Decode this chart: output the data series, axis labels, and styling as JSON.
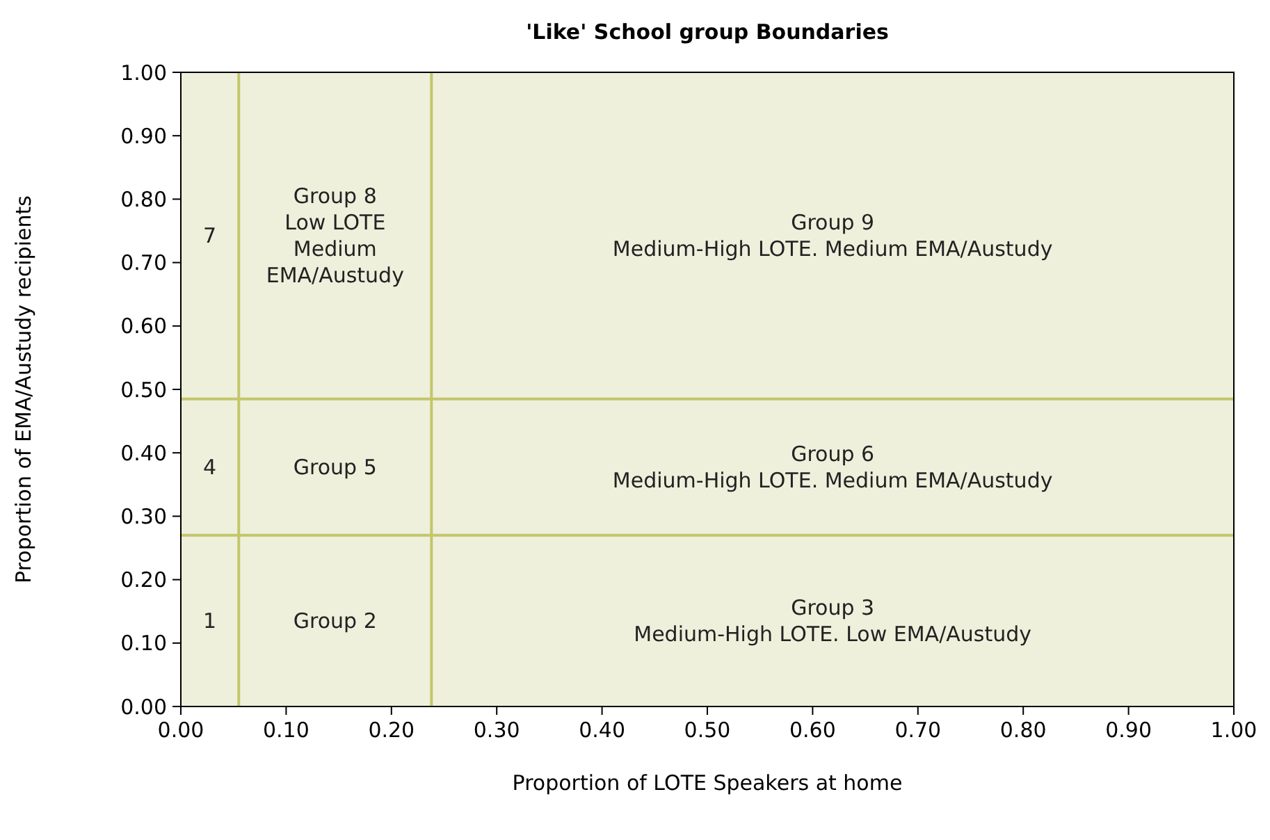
{
  "chart_data": {
    "type": "line",
    "title": "'Like' School group Boundaries",
    "xlabel": "Proportion of LOTE Speakers at home",
    "ylabel": "Proportion of EMA/Austudy recipients",
    "xlim": [
      0,
      1
    ],
    "ylim": [
      0,
      1
    ],
    "xticks": [
      {
        "value": 0,
        "label": "0.00"
      },
      {
        "value": 0.1,
        "label": "0.10"
      },
      {
        "value": 0.2,
        "label": "0.20"
      },
      {
        "value": 0.3,
        "label": "0.30"
      },
      {
        "value": 0.4,
        "label": "0.40"
      },
      {
        "value": 0.5,
        "label": "0.50"
      },
      {
        "value": 0.6,
        "label": "0.60"
      },
      {
        "value": 0.7,
        "label": "0.70"
      },
      {
        "value": 0.8,
        "label": "0.80"
      },
      {
        "value": 0.9,
        "label": "0.90"
      },
      {
        "value": 1,
        "label": "1.00"
      }
    ],
    "yticks": [
      {
        "value": 0,
        "label": "0.00"
      },
      {
        "value": 0.1,
        "label": "0.10"
      },
      {
        "value": 0.2,
        "label": "0.20"
      },
      {
        "value": 0.3,
        "label": "0.30"
      },
      {
        "value": 0.4,
        "label": "0.40"
      },
      {
        "value": 0.5,
        "label": "0.50"
      },
      {
        "value": 0.6,
        "label": "0.60"
      },
      {
        "value": 0.7,
        "label": "0.70"
      },
      {
        "value": 0.8,
        "label": "0.80"
      },
      {
        "value": 0.9,
        "label": "0.90"
      },
      {
        "value": 1,
        "label": "1.00"
      }
    ],
    "series": [
      {
        "color": "#c3c66a",
        "x": [
          0.055,
          0.055
        ],
        "values": [
          0,
          1
        ]
      },
      {
        "color": "#c3c66a",
        "x": [
          0.238,
          0.238
        ],
        "values": [
          0,
          1
        ]
      },
      {
        "color": "#c3c66a",
        "x": [
          0,
          1
        ],
        "values": [
          0.485,
          0.485
        ]
      },
      {
        "color": "#c3c66a",
        "x": [
          0,
          1
        ],
        "values": [
          0.27,
          0.27
        ]
      }
    ],
    "annotations": [
      "7",
      "Group 8\nLow LOTE\nMedium\nEMA/Austudy",
      "Group 9\nMedium-High LOTE. Medium EMA/Austudy",
      "4",
      "Group 5",
      "Group 6\nMedium-High LOTE. Medium EMA/Austudy",
      "1",
      "Group 2",
      "Group 3\nMedium-High LOTE. Low EMA/Austudy"
    ]
  }
}
